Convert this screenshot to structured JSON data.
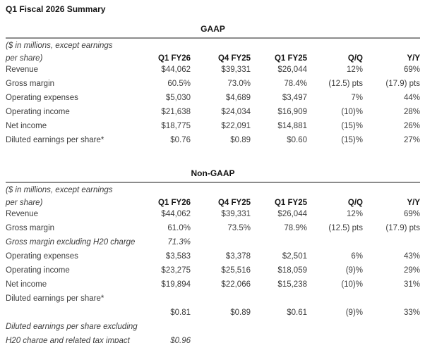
{
  "page": {
    "title": "Q1 Fiscal 2026 Summary"
  },
  "tables": [
    {
      "section_title": "GAAP",
      "unit_note_line1": "($ in millions, except earnings",
      "unit_note_line2": "per share)",
      "columns": [
        "Q1 FY26",
        "Q4 FY25",
        "Q1 FY25",
        "Q/Q",
        "Y/Y"
      ],
      "rows": [
        {
          "label": "Revenue",
          "italic": false,
          "values": [
            "$44,062",
            "$39,331",
            "$26,044",
            "12%",
            "69%"
          ]
        },
        {
          "label": "Gross margin",
          "italic": false,
          "values": [
            "60.5%",
            "73.0%",
            "78.4%",
            "(12.5) pts",
            "(17.9) pts"
          ]
        },
        {
          "label": "Operating expenses",
          "italic": false,
          "values": [
            "$5,030",
            "$4,689",
            "$3,497",
            "7%",
            "44%"
          ]
        },
        {
          "label": "Operating income",
          "italic": false,
          "values": [
            "$21,638",
            "$24,034",
            "$16,909",
            "(10)%",
            "28%"
          ]
        },
        {
          "label": "Net income",
          "italic": false,
          "values": [
            "$18,775",
            "$22,091",
            "$14,881",
            "(15)%",
            "26%"
          ]
        },
        {
          "label": "Diluted earnings per share*",
          "italic": false,
          "values": [
            "$0.76",
            "$0.89",
            "$0.60",
            "(15)%",
            "27%"
          ]
        }
      ]
    },
    {
      "section_title": "Non-GAAP",
      "unit_note_line1": "($ in millions, except earnings",
      "unit_note_line2": "per share)",
      "columns": [
        "Q1 FY26",
        "Q4 FY25",
        "Q1 FY25",
        "Q/Q",
        "Y/Y"
      ],
      "rows": [
        {
          "label": "Revenue",
          "italic": false,
          "values": [
            "$44,062",
            "$39,331",
            "$26,044",
            "12%",
            "69%"
          ]
        },
        {
          "label": "Gross margin",
          "italic": false,
          "values": [
            "61.0%",
            "73.5%",
            "78.9%",
            "(12.5) pts",
            "(17.9) pts"
          ]
        },
        {
          "label": "Gross margin excluding H20 charge",
          "italic": true,
          "values": [
            "71.3%",
            "",
            "",
            "",
            ""
          ]
        },
        {
          "label": "Operating expenses",
          "italic": false,
          "values": [
            "$3,583",
            "$3,378",
            "$2,501",
            "6%",
            "43%"
          ]
        },
        {
          "label": "Operating income",
          "italic": false,
          "values": [
            "$23,275",
            "$25,516",
            "$18,059",
            "(9)%",
            "29%"
          ]
        },
        {
          "label": "Net income",
          "italic": false,
          "values": [
            "$19,894",
            "$22,066",
            "$15,238",
            "(10)%",
            "31%"
          ]
        },
        {
          "label": "Diluted earnings per share*",
          "italic": false,
          "values": [
            "",
            "",
            "",
            "",
            ""
          ]
        },
        {
          "label": "",
          "italic": false,
          "values": [
            "$0.81",
            "$0.89",
            "$0.61",
            "(9)%",
            "33%"
          ]
        },
        {
          "label": "Diluted earnings per share excluding",
          "italic": true,
          "values": [
            "",
            "",
            "",
            "",
            ""
          ]
        },
        {
          "label": "H20 charge and related tax impact",
          "italic": true,
          "values": [
            "$0.96",
            "",
            "",
            "",
            ""
          ]
        }
      ]
    }
  ]
}
